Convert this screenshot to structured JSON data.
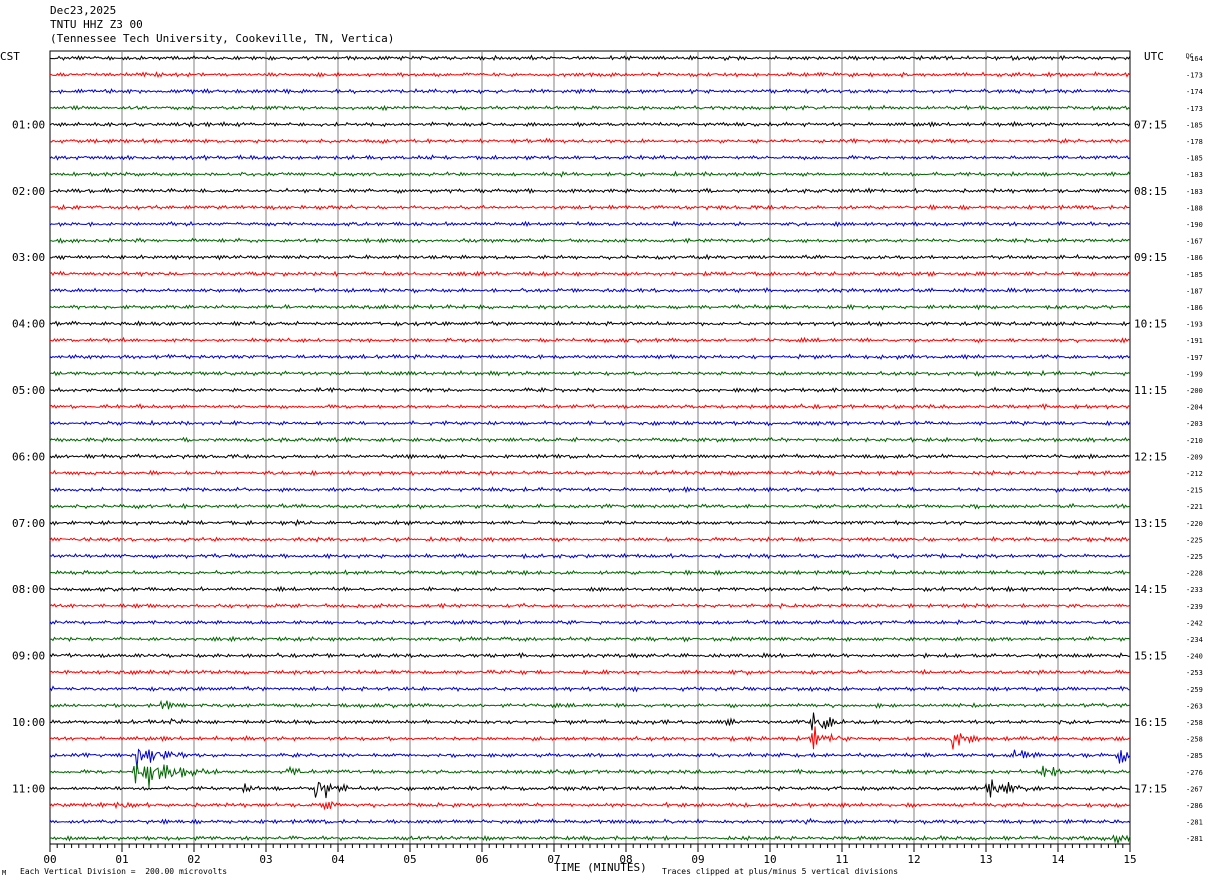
{
  "header": {
    "date": "Dec23,2025",
    "station": "TNTU HHZ Z3 00",
    "location": "(Tennessee Tech University, Cookeville, TN, Vertica)"
  },
  "labels": {
    "left_tz": "CST",
    "right_tz": "UTC",
    "dc": "DC",
    "x_title": "TIME (MINUTES)",
    "scale_note": "Each Vertical Division =  200.00 microvolts",
    "clip_note": "Traces clipped at plus/minus 5 vertical divisions",
    "logo_mark": "M"
  },
  "colors": {
    "trace_cycle": [
      "#000000",
      "#ff0000",
      "#0000cc",
      "#006400"
    ],
    "grid": "#808080",
    "text": "#000000"
  },
  "chart_data": {
    "type": "line",
    "title": "TNTU HHZ Z3 00",
    "xlabel": "TIME (MINUTES)",
    "xlim": [
      0,
      15
    ],
    "x_ticks": [
      "00",
      "01",
      "02",
      "03",
      "04",
      "05",
      "06",
      "07",
      "08",
      "09",
      "10",
      "11",
      "12",
      "13",
      "14",
      "15"
    ],
    "rows": 48,
    "minutes_per_row": 15,
    "left_hour_labels": [
      "01:00",
      "02:00",
      "03:00",
      "04:00",
      "05:00",
      "06:00",
      "07:00",
      "08:00",
      "09:00",
      "10:00",
      "11:00"
    ],
    "right_hour_labels": [
      "07:15",
      "08:15",
      "09:15",
      "10:15",
      "11:15",
      "12:15",
      "13:15",
      "14:15",
      "15:15",
      "16:15",
      "17:15"
    ],
    "dc_offsets": [
      -164,
      -173,
      -174,
      -173,
      -185,
      -178,
      -185,
      -183,
      -183,
      -188,
      -190,
      -167,
      -186,
      -185,
      -187,
      -186,
      -193,
      -191,
      -197,
      -199,
      -200,
      -204,
      -203,
      -210,
      -209,
      -212,
      -215,
      -221,
      -220,
      -225,
      -225,
      -228,
      -233,
      -239,
      -242,
      -234,
      -240,
      -253,
      -259,
      -263,
      -258,
      -258,
      -285,
      -276,
      -267,
      -286,
      -281,
      -281
    ],
    "events": [
      {
        "row": 27,
        "minute": 5.1,
        "amp": 5,
        "dur": 0.3
      },
      {
        "row": 28,
        "minute": 3.4,
        "amp": 4,
        "dur": 0.3
      },
      {
        "row": 37,
        "minute": 9.6,
        "amp": 4,
        "dur": 0.3
      },
      {
        "row": 39,
        "minute": 1.5,
        "amp": 7,
        "dur": 0.5
      },
      {
        "row": 40,
        "minute": 1.7,
        "amp": 5,
        "dur": 0.3
      },
      {
        "row": 40,
        "minute": 9.4,
        "amp": 4,
        "dur": 0.4
      },
      {
        "row": 40,
        "minute": 10.6,
        "amp": 12,
        "dur": 0.6
      },
      {
        "row": 41,
        "minute": 10.6,
        "amp": 14,
        "dur": 0.4
      },
      {
        "row": 41,
        "minute": 12.55,
        "amp": 16,
        "dur": 0.3
      },
      {
        "row": 42,
        "minute": 1.2,
        "amp": 14,
        "dur": 0.6
      },
      {
        "row": 42,
        "minute": 13.4,
        "amp": 12,
        "dur": 0.3
      },
      {
        "row": 42,
        "minute": 14.85,
        "amp": 14,
        "dur": 0.3
      },
      {
        "row": 43,
        "minute": 1.2,
        "amp": 20,
        "dur": 0.9
      },
      {
        "row": 43,
        "minute": 3.3,
        "amp": 6,
        "dur": 0.5
      },
      {
        "row": 43,
        "minute": 13.8,
        "amp": 8,
        "dur": 0.4
      },
      {
        "row": 44,
        "minute": 2.7,
        "amp": 5,
        "dur": 0.4
      },
      {
        "row": 44,
        "minute": 3.7,
        "amp": 16,
        "dur": 0.4
      },
      {
        "row": 44,
        "minute": 10.9,
        "amp": 4,
        "dur": 0.3
      },
      {
        "row": 44,
        "minute": 13.0,
        "amp": 14,
        "dur": 0.6
      },
      {
        "row": 45,
        "minute": 0.95,
        "amp": 8,
        "dur": 0.3
      },
      {
        "row": 45,
        "minute": 3.75,
        "amp": 7,
        "dur": 0.4
      },
      {
        "row": 46,
        "minute": 10.4,
        "amp": 5,
        "dur": 0.4
      },
      {
        "row": 47,
        "minute": 14.75,
        "amp": 10,
        "dur": 0.4
      }
    ]
  }
}
